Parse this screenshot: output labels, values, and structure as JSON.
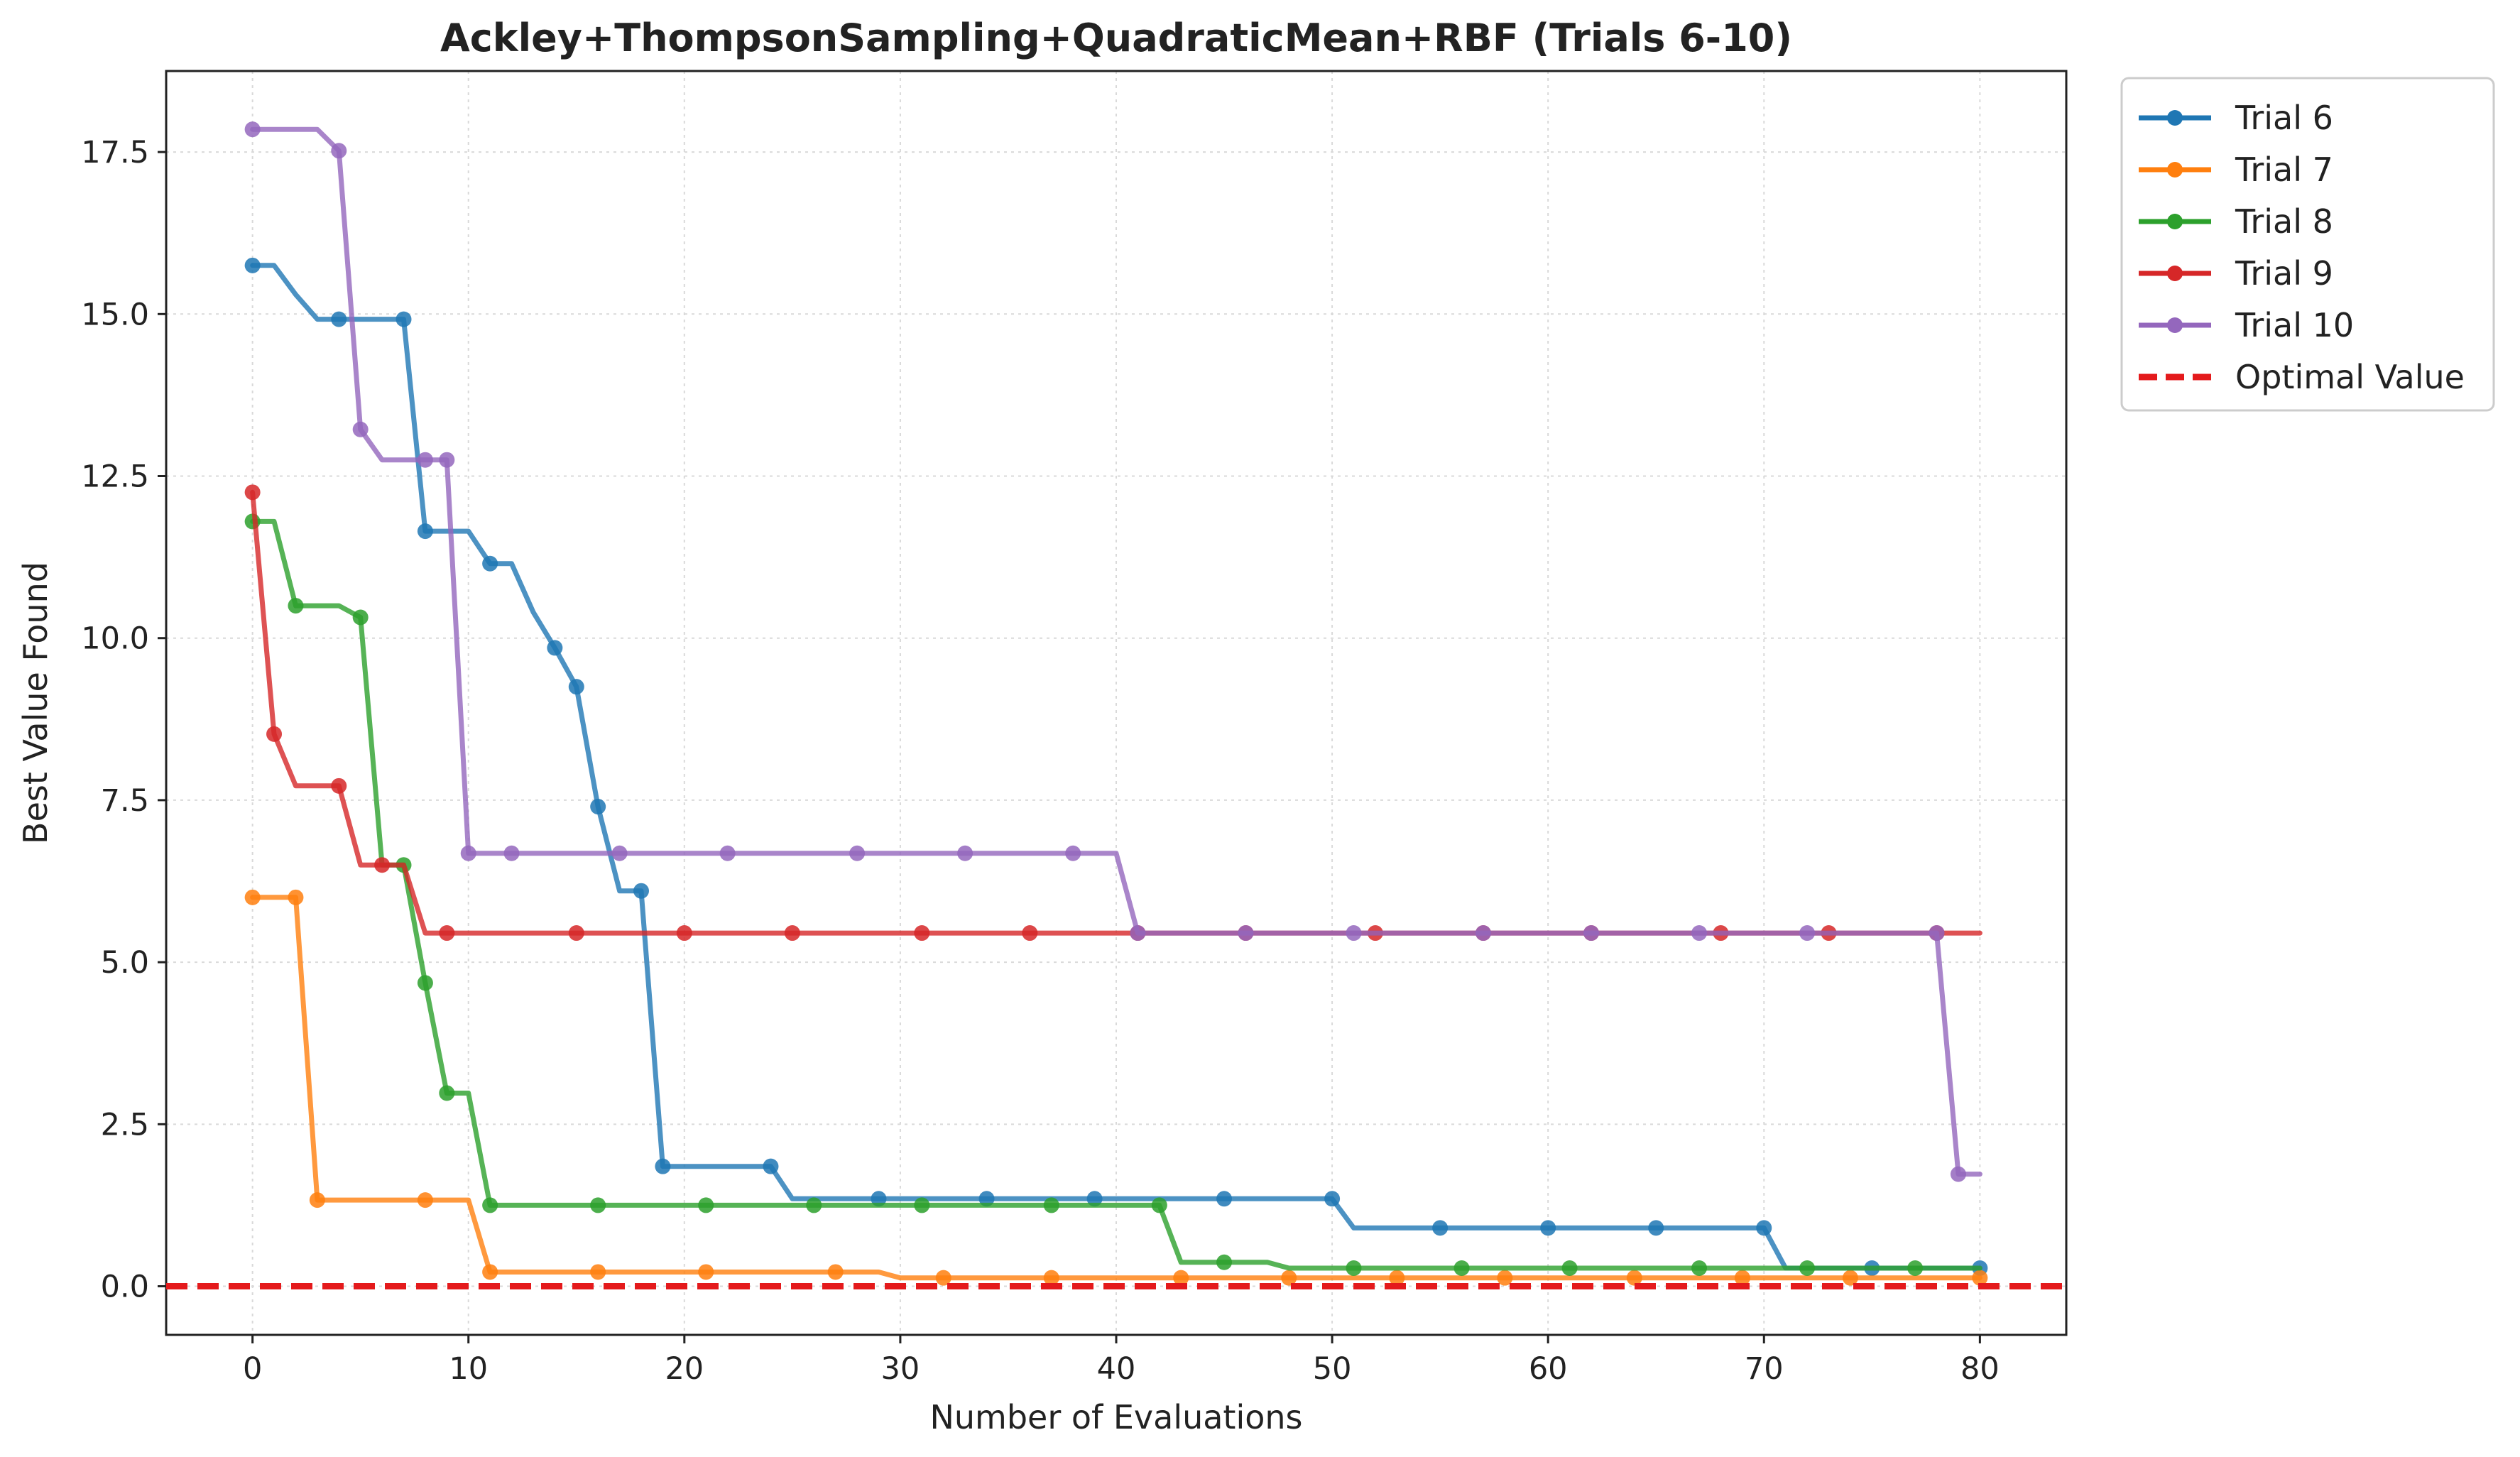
{
  "chart_data": {
    "type": "line",
    "title": "Ackley+ThompsonSampling+QuadraticMean+RBF (Trials 6-10)",
    "xlabel": "Number of Evaluations",
    "ylabel": "Best Value Found",
    "xlim": [
      -4,
      84
    ],
    "ylim": [
      -0.75,
      18.75
    ],
    "xticks": [
      0,
      10,
      20,
      30,
      40,
      50,
      60,
      70,
      80
    ],
    "xtick_labels": [
      "0",
      "10",
      "20",
      "30",
      "40",
      "50",
      "60",
      "70",
      "80"
    ],
    "yticks": [
      0,
      2.5,
      5,
      7.5,
      10,
      12.5,
      15,
      17.5
    ],
    "ytick_labels": [
      "0.0",
      "2.5",
      "5.0",
      "7.5",
      "10.0",
      "12.5",
      "15.0",
      "17.5"
    ],
    "grid": true,
    "legend_position": "outside-upper-right",
    "reference_line": {
      "name": "Optimal Value",
      "y": 0,
      "color": "#e41a1c",
      "style": "dashed"
    },
    "series": [
      {
        "name": "Trial 6",
        "color": "#1f77b4",
        "x": [
          0,
          1,
          2,
          3,
          4,
          5,
          6,
          7,
          8,
          9,
          10,
          11,
          12,
          13,
          14,
          15,
          16,
          17,
          18,
          19,
          20,
          21,
          22,
          23,
          24,
          25,
          26,
          27,
          28,
          29,
          30,
          31,
          32,
          33,
          34,
          35,
          36,
          37,
          38,
          39,
          40,
          41,
          42,
          43,
          44,
          45,
          46,
          47,
          48,
          49,
          50,
          51,
          52,
          53,
          54,
          55,
          56,
          57,
          58,
          59,
          60,
          61,
          62,
          63,
          64,
          65,
          66,
          67,
          68,
          69,
          70,
          71,
          72,
          73,
          74,
          75,
          76,
          77,
          78,
          79,
          80
        ],
        "y": [
          15.75,
          15.75,
          15.3,
          14.92,
          14.92,
          14.92,
          14.92,
          14.92,
          11.65,
          11.65,
          11.65,
          11.15,
          11.15,
          10.4,
          9.85,
          9.25,
          7.4,
          6.1,
          6.1,
          1.85,
          1.85,
          1.85,
          1.85,
          1.85,
          1.85,
          1.35,
          1.35,
          1.35,
          1.35,
          1.35,
          1.35,
          1.35,
          1.35,
          1.35,
          1.35,
          1.35,
          1.35,
          1.35,
          1.35,
          1.35,
          1.35,
          1.35,
          1.35,
          1.35,
          1.35,
          1.35,
          1.35,
          1.35,
          1.35,
          1.35,
          1.35,
          0.9,
          0.9,
          0.9,
          0.9,
          0.9,
          0.9,
          0.9,
          0.9,
          0.9,
          0.9,
          0.9,
          0.9,
          0.9,
          0.9,
          0.9,
          0.9,
          0.9,
          0.9,
          0.9,
          0.9,
          0.28,
          0.28,
          0.28,
          0.28,
          0.28,
          0.28,
          0.28,
          0.28,
          0.28,
          0.28
        ],
        "markers": [
          0,
          4,
          7,
          8,
          11,
          14,
          15,
          16,
          18,
          19,
          24,
          29,
          34,
          39,
          45,
          50,
          55,
          60,
          65,
          70,
          75,
          80
        ]
      },
      {
        "name": "Trial 7",
        "color": "#ff7f0e",
        "x": [
          0,
          1,
          2,
          3,
          4,
          5,
          6,
          7,
          8,
          9,
          10,
          11,
          12,
          13,
          14,
          15,
          16,
          17,
          18,
          19,
          20,
          21,
          22,
          23,
          24,
          25,
          26,
          27,
          28,
          29,
          30,
          31,
          32,
          33,
          34,
          35,
          36,
          37,
          38,
          39,
          40,
          41,
          42,
          43,
          44,
          45,
          46,
          47,
          48,
          49,
          50,
          51,
          52,
          53,
          54,
          55,
          56,
          57,
          58,
          59,
          60,
          61,
          62,
          63,
          64,
          65,
          66,
          67,
          68,
          69,
          70,
          71,
          72,
          73,
          74,
          75,
          76,
          77,
          78,
          79,
          80
        ],
        "y": [
          6.0,
          6.0,
          6.0,
          1.33,
          1.33,
          1.33,
          1.33,
          1.33,
          1.33,
          1.33,
          1.33,
          0.22,
          0.22,
          0.22,
          0.22,
          0.22,
          0.22,
          0.22,
          0.22,
          0.22,
          0.22,
          0.22,
          0.22,
          0.22,
          0.22,
          0.22,
          0.22,
          0.22,
          0.22,
          0.22,
          0.13,
          0.13,
          0.13,
          0.13,
          0.13,
          0.13,
          0.13,
          0.13,
          0.13,
          0.13,
          0.13,
          0.13,
          0.13,
          0.13,
          0.13,
          0.13,
          0.13,
          0.13,
          0.13,
          0.13,
          0.13,
          0.13,
          0.13,
          0.13,
          0.13,
          0.13,
          0.13,
          0.13,
          0.13,
          0.13,
          0.13,
          0.13,
          0.13,
          0.13,
          0.13,
          0.13,
          0.13,
          0.13,
          0.13,
          0.13,
          0.13,
          0.13,
          0.13,
          0.13,
          0.13,
          0.13,
          0.13,
          0.13,
          0.13,
          0.13,
          0.13
        ],
        "markers": [
          0,
          2,
          3,
          8,
          11,
          16,
          21,
          27,
          32,
          37,
          43,
          48,
          53,
          58,
          64,
          69,
          74,
          80
        ]
      },
      {
        "name": "Trial 8",
        "color": "#2ca02c",
        "x": [
          0,
          1,
          2,
          3,
          4,
          5,
          6,
          7,
          8,
          9,
          10,
          11,
          12,
          13,
          14,
          15,
          16,
          17,
          18,
          19,
          20,
          21,
          22,
          23,
          24,
          25,
          26,
          27,
          28,
          29,
          30,
          31,
          32,
          33,
          34,
          35,
          36,
          37,
          38,
          39,
          40,
          41,
          42,
          43,
          44,
          45,
          46,
          47,
          48,
          49,
          50,
          51,
          52,
          53,
          54,
          55,
          56,
          57,
          58,
          59,
          60,
          61,
          62,
          63,
          64,
          65,
          66,
          67,
          68,
          69,
          70,
          71,
          72,
          73,
          74,
          75,
          76,
          77,
          78,
          79,
          80
        ],
        "y": [
          11.8,
          11.8,
          10.5,
          10.5,
          10.5,
          10.32,
          6.5,
          6.5,
          4.68,
          2.98,
          2.98,
          1.25,
          1.25,
          1.25,
          1.25,
          1.25,
          1.25,
          1.25,
          1.25,
          1.25,
          1.25,
          1.25,
          1.25,
          1.25,
          1.25,
          1.25,
          1.25,
          1.25,
          1.25,
          1.25,
          1.25,
          1.25,
          1.25,
          1.25,
          1.25,
          1.25,
          1.25,
          1.25,
          1.25,
          1.25,
          1.25,
          1.25,
          1.25,
          0.37,
          0.37,
          0.37,
          0.37,
          0.37,
          0.28,
          0.28,
          0.28,
          0.28,
          0.28,
          0.28,
          0.28,
          0.28,
          0.28,
          0.28,
          0.28,
          0.28,
          0.28,
          0.28,
          0.28,
          0.28,
          0.28,
          0.28,
          0.28,
          0.28,
          0.28,
          0.28,
          0.28,
          0.28,
          0.28,
          0.28,
          0.28,
          0.28,
          0.28,
          0.28,
          0.28,
          0.28,
          0.28
        ],
        "markers": [
          0,
          2,
          5,
          7,
          8,
          9,
          11,
          16,
          21,
          26,
          31,
          37,
          42,
          45,
          51,
          56,
          61,
          67,
          72,
          77
        ]
      },
      {
        "name": "Trial 9",
        "color": "#d62728",
        "x": [
          0,
          1,
          2,
          3,
          4,
          5,
          6,
          7,
          8,
          9,
          10,
          11,
          12,
          13,
          14,
          15,
          16,
          17,
          18,
          19,
          20,
          21,
          22,
          23,
          24,
          25,
          26,
          27,
          28,
          29,
          30,
          31,
          32,
          33,
          34,
          35,
          36,
          37,
          38,
          39,
          40,
          41,
          42,
          43,
          44,
          45,
          46,
          47,
          48,
          49,
          50,
          51,
          52,
          53,
          54,
          55,
          56,
          57,
          58,
          59,
          60,
          61,
          62,
          63,
          64,
          65,
          66,
          67,
          68,
          69,
          70,
          71,
          72,
          73,
          74,
          75,
          76,
          77,
          78,
          79,
          80
        ],
        "y": [
          12.25,
          8.52,
          7.72,
          7.72,
          7.72,
          6.5,
          6.5,
          6.5,
          5.45,
          5.45,
          5.45,
          5.45,
          5.45,
          5.45,
          5.45,
          5.45,
          5.45,
          5.45,
          5.45,
          5.45,
          5.45,
          5.45,
          5.45,
          5.45,
          5.45,
          5.45,
          5.45,
          5.45,
          5.45,
          5.45,
          5.45,
          5.45,
          5.45,
          5.45,
          5.45,
          5.45,
          5.45,
          5.45,
          5.45,
          5.45,
          5.45,
          5.45,
          5.45,
          5.45,
          5.45,
          5.45,
          5.45,
          5.45,
          5.45,
          5.45,
          5.45,
          5.45,
          5.45,
          5.45,
          5.45,
          5.45,
          5.45,
          5.45,
          5.45,
          5.45,
          5.45,
          5.45,
          5.45,
          5.45,
          5.45,
          5.45,
          5.45,
          5.45,
          5.45,
          5.45,
          5.45,
          5.45,
          5.45,
          5.45,
          5.45,
          5.45,
          5.45,
          5.45,
          5.45,
          5.45,
          5.45
        ],
        "markers": [
          0,
          1,
          4,
          6,
          9,
          15,
          20,
          25,
          31,
          36,
          41,
          46,
          52,
          57,
          62,
          68,
          73,
          78
        ]
      },
      {
        "name": "Trial 10",
        "color": "#9467bd",
        "x": [
          0,
          1,
          2,
          3,
          4,
          5,
          6,
          7,
          8,
          9,
          10,
          11,
          12,
          13,
          14,
          15,
          16,
          17,
          18,
          19,
          20,
          21,
          22,
          23,
          24,
          25,
          26,
          27,
          28,
          29,
          30,
          31,
          32,
          33,
          34,
          35,
          36,
          37,
          38,
          39,
          40,
          41,
          42,
          43,
          44,
          45,
          46,
          47,
          48,
          49,
          50,
          51,
          52,
          53,
          54,
          55,
          56,
          57,
          58,
          59,
          60,
          61,
          62,
          63,
          64,
          65,
          66,
          67,
          68,
          69,
          70,
          71,
          72,
          73,
          74,
          75,
          76,
          77,
          78,
          79,
          80
        ],
        "y": [
          17.85,
          17.85,
          17.85,
          17.85,
          17.52,
          13.22,
          12.75,
          12.75,
          12.75,
          12.75,
          6.68,
          6.68,
          6.68,
          6.68,
          6.68,
          6.68,
          6.68,
          6.68,
          6.68,
          6.68,
          6.68,
          6.68,
          6.68,
          6.68,
          6.68,
          6.68,
          6.68,
          6.68,
          6.68,
          6.68,
          6.68,
          6.68,
          6.68,
          6.68,
          6.68,
          6.68,
          6.68,
          6.68,
          6.68,
          6.68,
          6.68,
          5.45,
          5.45,
          5.45,
          5.45,
          5.45,
          5.45,
          5.45,
          5.45,
          5.45,
          5.45,
          5.45,
          5.45,
          5.45,
          5.45,
          5.45,
          5.45,
          5.45,
          5.45,
          5.45,
          5.45,
          5.45,
          5.45,
          5.45,
          5.45,
          5.45,
          5.45,
          5.45,
          5.45,
          5.45,
          5.45,
          5.45,
          5.45,
          5.45,
          5.45,
          5.45,
          5.45,
          5.45,
          5.45,
          1.73,
          1.73
        ],
        "markers": [
          0,
          4,
          5,
          8,
          9,
          10,
          12,
          17,
          22,
          28,
          33,
          38,
          41,
          46,
          51,
          57,
          62,
          67,
          72,
          78,
          79
        ]
      }
    ]
  }
}
